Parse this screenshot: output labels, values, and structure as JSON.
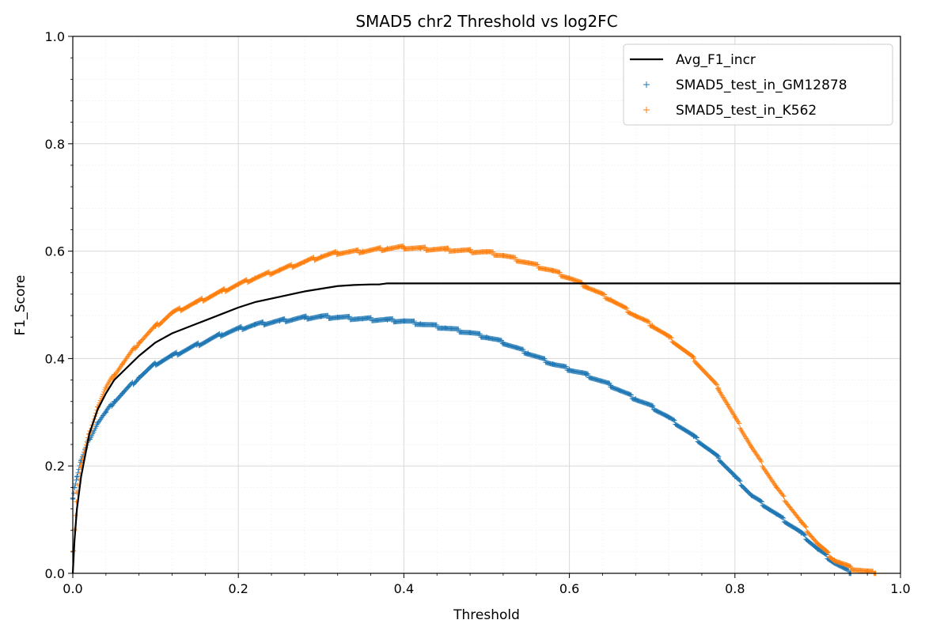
{
  "chart_data": {
    "type": "line",
    "title": "SMAD5 chr2 Threshold vs log2FC",
    "xlabel": "Threshold",
    "ylabel": "F1_Score",
    "xlim": [
      0,
      1
    ],
    "ylim": [
      0,
      1
    ],
    "xticks": [
      "0.0",
      "0.2",
      "0.4",
      "0.6",
      "0.8",
      "1.0"
    ],
    "yticks": [
      "0.0",
      "0.2",
      "0.4",
      "0.6",
      "0.8",
      "1.0"
    ],
    "grid": true,
    "minor_grid": true,
    "legend_position": "top-right",
    "series": [
      {
        "name": "Avg_F1_incr",
        "kind": "line",
        "color": "#000000",
        "x": [
          0,
          0.002,
          0.005,
          0.01,
          0.02,
          0.03,
          0.04,
          0.05,
          0.06,
          0.08,
          0.1,
          0.12,
          0.15,
          0.18,
          0.2,
          0.22,
          0.25,
          0.28,
          0.3,
          0.32,
          0.34,
          0.36,
          0.37,
          0.38,
          0.4,
          0.5,
          0.6,
          0.7,
          0.8,
          0.9,
          1.0
        ],
        "y": [
          0.0,
          0.06,
          0.12,
          0.18,
          0.26,
          0.305,
          0.335,
          0.36,
          0.375,
          0.405,
          0.43,
          0.447,
          0.465,
          0.483,
          0.495,
          0.505,
          0.515,
          0.525,
          0.53,
          0.535,
          0.537,
          0.538,
          0.538,
          0.54,
          0.54,
          0.54,
          0.54,
          0.54,
          0.54,
          0.54,
          0.54
        ]
      },
      {
        "name": "SMAD5_test_in_GM12878",
        "kind": "scatter",
        "marker": "+",
        "color": "#1f77b4",
        "x": [
          0,
          0.002,
          0.005,
          0.01,
          0.02,
          0.03,
          0.04,
          0.05,
          0.06,
          0.08,
          0.1,
          0.12,
          0.15,
          0.18,
          0.2,
          0.22,
          0.25,
          0.28,
          0.3,
          0.32,
          0.35,
          0.38,
          0.4,
          0.42,
          0.45,
          0.48,
          0.5,
          0.52,
          0.55,
          0.58,
          0.6,
          0.62,
          0.65,
          0.68,
          0.7,
          0.72,
          0.75,
          0.78,
          0.8,
          0.82,
          0.85,
          0.88,
          0.9,
          0.92,
          0.94
        ],
        "y": [
          0.14,
          0.16,
          0.18,
          0.21,
          0.25,
          0.28,
          0.3,
          0.32,
          0.335,
          0.365,
          0.39,
          0.405,
          0.425,
          0.445,
          0.455,
          0.463,
          0.47,
          0.476,
          0.478,
          0.477,
          0.474,
          0.472,
          0.47,
          0.465,
          0.457,
          0.448,
          0.44,
          0.43,
          0.41,
          0.39,
          0.38,
          0.37,
          0.35,
          0.325,
          0.31,
          0.29,
          0.255,
          0.215,
          0.18,
          0.145,
          0.11,
          0.075,
          0.045,
          0.02,
          0.0
        ]
      },
      {
        "name": "SMAD5_test_in_K562",
        "kind": "scatter",
        "marker": "+",
        "color": "#ff7f0e",
        "x": [
          0,
          0.002,
          0.005,
          0.01,
          0.02,
          0.03,
          0.04,
          0.05,
          0.06,
          0.08,
          0.1,
          0.12,
          0.15,
          0.18,
          0.2,
          0.22,
          0.25,
          0.28,
          0.3,
          0.32,
          0.35,
          0.38,
          0.4,
          0.42,
          0.45,
          0.48,
          0.5,
          0.52,
          0.55,
          0.58,
          0.6,
          0.62,
          0.65,
          0.68,
          0.7,
          0.72,
          0.75,
          0.78,
          0.8,
          0.82,
          0.85,
          0.88,
          0.9,
          0.92,
          0.94,
          0.96,
          0.97
        ],
        "y": [
          0.0,
          0.08,
          0.15,
          0.2,
          0.26,
          0.31,
          0.345,
          0.37,
          0.39,
          0.43,
          0.46,
          0.485,
          0.505,
          0.525,
          0.538,
          0.55,
          0.565,
          0.58,
          0.59,
          0.597,
          0.6,
          0.605,
          0.607,
          0.605,
          0.603,
          0.6,
          0.598,
          0.592,
          0.578,
          0.563,
          0.55,
          0.535,
          0.51,
          0.48,
          0.462,
          0.44,
          0.4,
          0.345,
          0.29,
          0.235,
          0.16,
          0.095,
          0.055,
          0.025,
          0.01,
          0.003,
          0.0
        ]
      }
    ]
  }
}
